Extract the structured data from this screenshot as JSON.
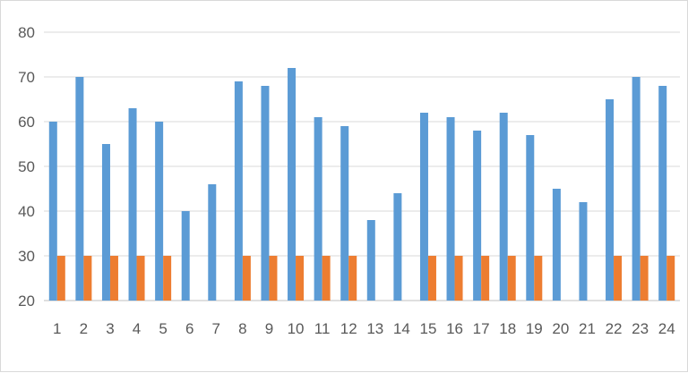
{
  "chart_data": {
    "type": "bar",
    "categories": [
      "1",
      "2",
      "3",
      "4",
      "5",
      "6",
      "7",
      "8",
      "9",
      "10",
      "11",
      "12",
      "13",
      "14",
      "15",
      "16",
      "17",
      "18",
      "19",
      "20",
      "21",
      "22",
      "23",
      "24"
    ],
    "series": [
      {
        "color": "#5b9bd5",
        "values": [
          60,
          70,
          55,
          63,
          60,
          40,
          46,
          69,
          68,
          72,
          61,
          59,
          38,
          44,
          62,
          61,
          58,
          62,
          57,
          45,
          42,
          65,
          70,
          68
        ]
      },
      {
        "color": "#ed7d31",
        "values": [
          30,
          30,
          30,
          30,
          30,
          null,
          null,
          30,
          30,
          30,
          30,
          30,
          null,
          null,
          30,
          30,
          30,
          30,
          30,
          null,
          null,
          30,
          30,
          30
        ]
      }
    ],
    "ylim": [
      20,
      80
    ],
    "yticks": [
      20,
      30,
      40,
      50,
      60,
      70,
      80
    ],
    "grid": true,
    "legend": "none"
  }
}
